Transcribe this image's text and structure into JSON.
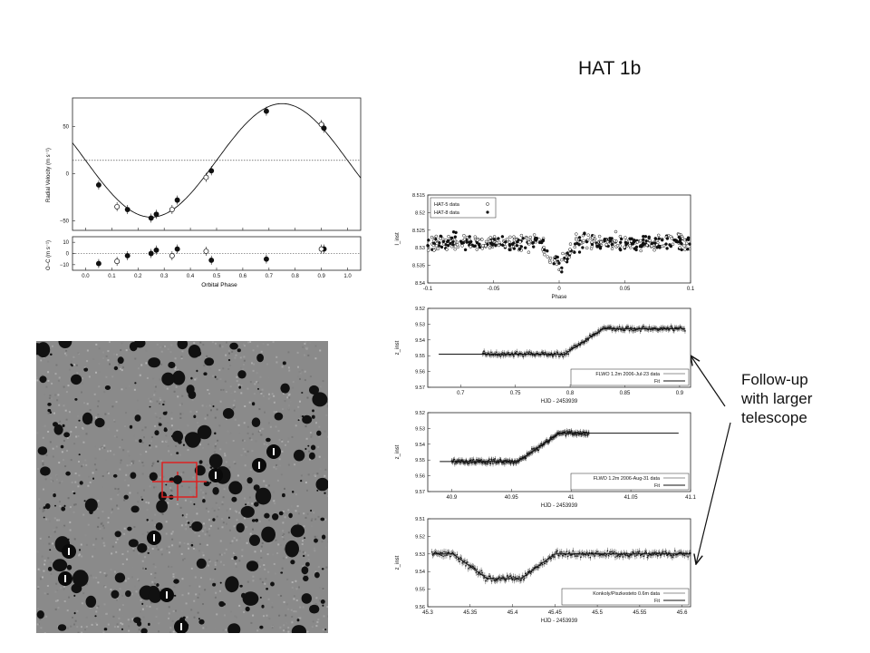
{
  "slide": {
    "title": "HAT 1b",
    "annotation": [
      "Follow-up",
      "with larger",
      "telescope"
    ],
    "arrow_color": "#111111"
  },
  "rv_panel": {
    "ylabel_top": "Radial Velocity (m s⁻¹)",
    "ylabel_bottom": "O−C (m s⁻¹)",
    "xlabel": "Orbital Phase",
    "xticks": [
      "0.0",
      "0.1",
      "0.2",
      "0.3",
      "0.4",
      "0.5",
      "0.6",
      "0.7",
      "0.8",
      "0.9",
      "1.0"
    ],
    "yticks_top": [
      "50",
      "0",
      "−50"
    ],
    "yticks_bottom": [
      "10",
      "0",
      "−10"
    ]
  },
  "field_image": {
    "marker_color": "#dd2222"
  },
  "chart_data": [
    {
      "type": "line",
      "name": "rv_curve",
      "xlim": [
        -0.05,
        1.05
      ],
      "ylim": [
        -60,
        80
      ],
      "gamma": 14,
      "amplitude": 60,
      "points_filled": [
        [
          0.05,
          -12
        ],
        [
          0.16,
          -38
        ],
        [
          0.25,
          -47
        ],
        [
          0.27,
          -43
        ],
        [
          0.35,
          -28
        ],
        [
          0.48,
          3
        ],
        [
          0.69,
          66
        ],
        [
          0.91,
          48
        ]
      ],
      "points_open": [
        [
          0.12,
          -35
        ],
        [
          0.33,
          -38
        ],
        [
          0.46,
          -4
        ],
        [
          0.9,
          52
        ]
      ]
    },
    {
      "type": "scatter",
      "name": "rv_residuals",
      "xlim": [
        -0.05,
        1.05
      ],
      "ylim": [
        -15,
        15
      ],
      "points_filled": [
        [
          0.05,
          -9
        ],
        [
          0.16,
          -2
        ],
        [
          0.25,
          0
        ],
        [
          0.27,
          3
        ],
        [
          0.35,
          4
        ],
        [
          0.48,
          -6
        ],
        [
          0.69,
          -5
        ],
        [
          0.91,
          4
        ]
      ],
      "points_open": [
        [
          0.12,
          -7
        ],
        [
          0.33,
          -2
        ],
        [
          0.46,
          2
        ],
        [
          0.9,
          4
        ]
      ]
    },
    {
      "type": "scatter",
      "name": "hat_phased",
      "xlim": [
        -0.1,
        0.1
      ],
      "ylim": [
        8.54,
        8.515
      ],
      "xticks": [
        "-0.1",
        "-0.05",
        "0",
        "0.05",
        "0.1"
      ],
      "yticks": [
        "8.515",
        "8.52",
        "8.525",
        "8.53",
        "8.535",
        "8.54"
      ],
      "xlabel": "Phase",
      "ylabel": "I_inst",
      "legend": [
        "HAT-5 data",
        "HAT-8 data"
      ]
    },
    {
      "type": "scatter",
      "name": "flwo_jul23",
      "xlim": [
        0.67,
        0.91
      ],
      "ylim": [
        9.57,
        9.52
      ],
      "xticks": [
        "0.7",
        "0.75",
        "0.8",
        "0.85",
        "0.9"
      ],
      "yticks": [
        "9.52",
        "9.53",
        "9.54",
        "9.55",
        "9.56",
        "9.57"
      ],
      "xlabel": "HJD - 2453939",
      "ylabel": "z_inst",
      "legend": [
        "FLWO 1.2m 2006-Jul-23 data",
        "Fit"
      ],
      "ingress": 0.795,
      "egress": 0.83,
      "depth": 0.016,
      "base": 9.533
    },
    {
      "type": "scatter",
      "name": "flwo_aug31",
      "xlim": [
        40.88,
        41.1
      ],
      "ylim": [
        9.57,
        9.52
      ],
      "xticks": [
        "40.9",
        "40.95",
        "41",
        "41.05",
        "41.1"
      ],
      "yticks": [
        "9.52",
        "9.53",
        "9.54",
        "9.55",
        "9.56",
        "9.57"
      ],
      "xlabel": "HJD - 2453939",
      "ylabel": "z_inst",
      "legend": [
        "FLWO 1.2m 2006-Aug-31 data",
        "Fit"
      ],
      "ingress": 40.955,
      "egress": 40.99,
      "depth": 0.018,
      "base": 9.533
    },
    {
      "type": "scatter",
      "name": "konkoly",
      "xlim": [
        45.3,
        45.61
      ],
      "ylim": [
        9.56,
        9.51
      ],
      "xticks": [
        "45.3",
        "45.35",
        "45.4",
        "45.45",
        "45.5",
        "45.55",
        "45.6"
      ],
      "yticks": [
        "9.51",
        "9.52",
        "9.53",
        "9.54",
        "9.55",
        "9.56"
      ],
      "xlabel": "HJD - 2453939",
      "ylabel": "z_inst",
      "legend": [
        "Konkoly/Piszkesteto 0.6m data",
        "Fit"
      ],
      "ingress": 45.33,
      "egress": 45.47,
      "depth": 0.014,
      "base": 9.53
    }
  ]
}
